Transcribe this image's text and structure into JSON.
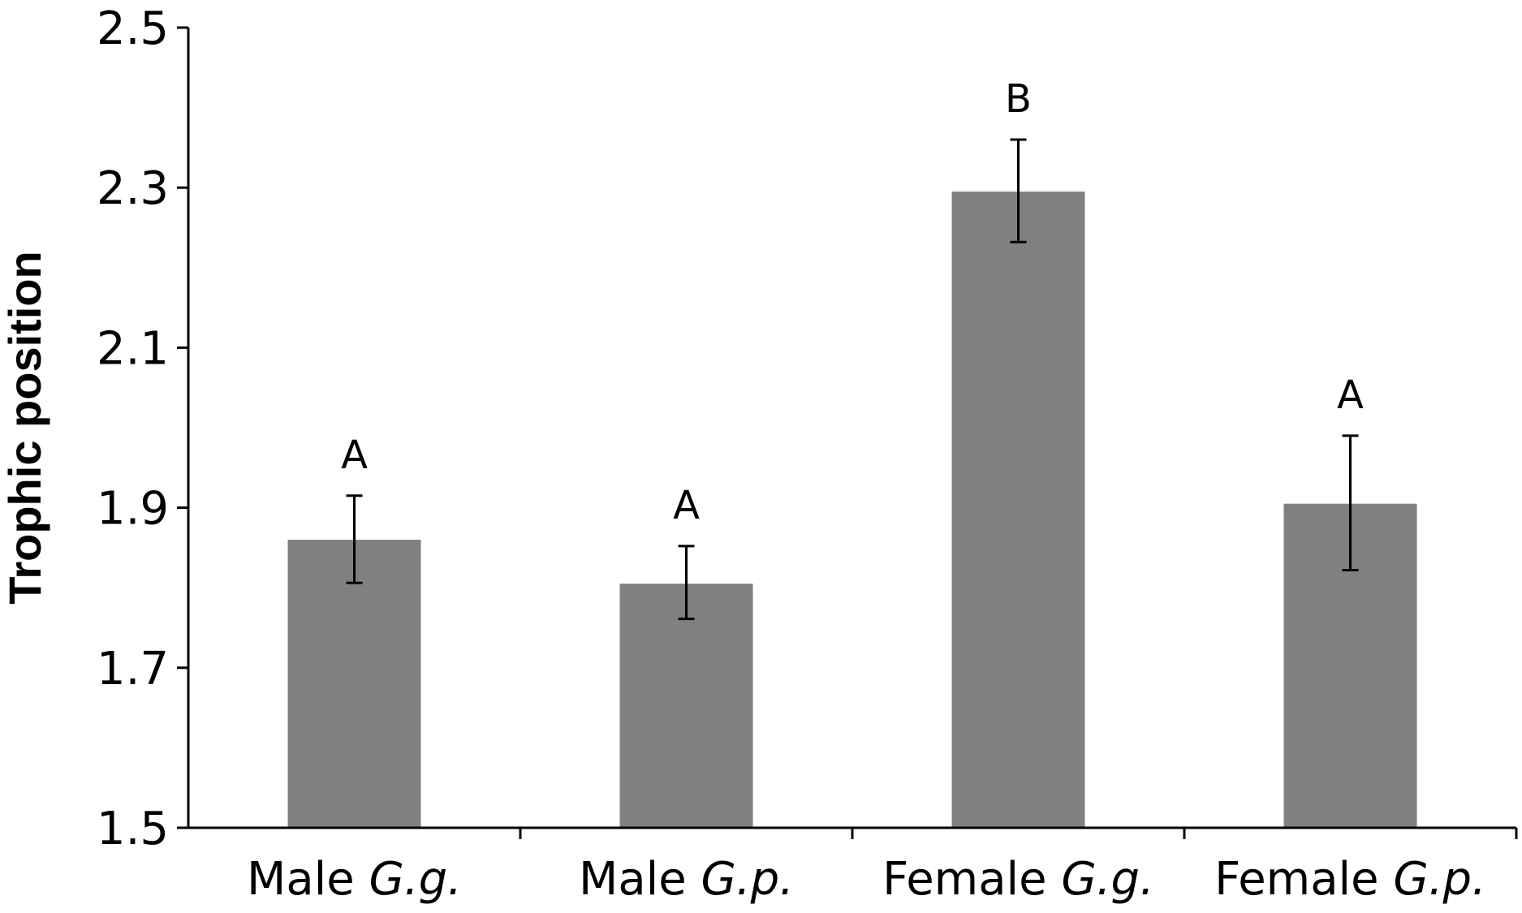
{
  "chart_data": {
    "type": "bar",
    "title": "",
    "xlabel": "",
    "ylabel": "Trophic position",
    "ylim": [
      1.5,
      2.5
    ],
    "yticks": [
      "1.5",
      "1.7",
      "1.9",
      "2.1",
      "2.3",
      "2.5"
    ],
    "categories": [
      {
        "prefix": "Male",
        "italic": "G.g."
      },
      {
        "prefix": "Male",
        "italic": "G.p."
      },
      {
        "prefix": "Female",
        "italic": "G.g."
      },
      {
        "prefix": "Female",
        "italic": "G.p."
      }
    ],
    "values": [
      1.86,
      1.805,
      2.295,
      1.905
    ],
    "error_low": [
      1.806,
      1.761,
      2.232,
      1.822
    ],
    "error_high": [
      1.915,
      1.852,
      2.36,
      1.99
    ],
    "significance": [
      "A",
      "A",
      "B",
      "A"
    ],
    "bar_color": "#808080",
    "grid": false,
    "legend": "none"
  }
}
